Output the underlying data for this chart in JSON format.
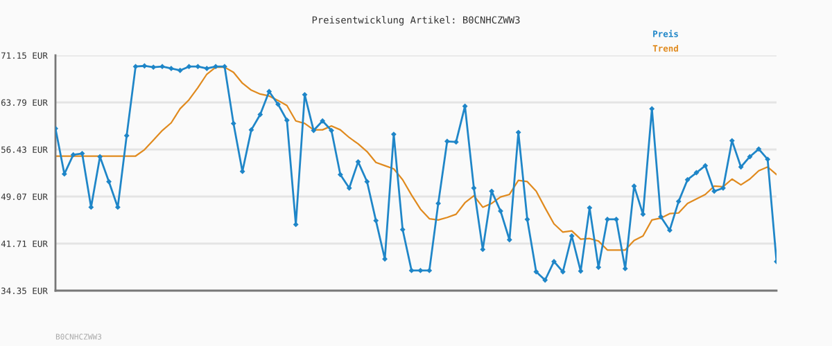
{
  "chart_data": {
    "type": "line",
    "title": "Preisentwicklung Artikel: B0CNHCZWW3",
    "categories": [
      null,
      null,
      null,
      null,
      null,
      null,
      null,
      null,
      null,
      null,
      null,
      null,
      null,
      null,
      null,
      null,
      null,
      null,
      null,
      null,
      null,
      null,
      null,
      null,
      null,
      null,
      null,
      null,
      null,
      null,
      null,
      null,
      null,
      null,
      null,
      null,
      null,
      null,
      null,
      null,
      null,
      null,
      null,
      null,
      null,
      null,
      null,
      null,
      null,
      null,
      null,
      null,
      null,
      null,
      null,
      null,
      null,
      null,
      null,
      null,
      null,
      null,
      null,
      null,
      null,
      null,
      null,
      null,
      null,
      null,
      null,
      null,
      null,
      null,
      null,
      null,
      null,
      null,
      null,
      null,
      null,
      null
    ],
    "series": [
      {
        "name": "Preis",
        "color": "#1f86c8",
        "marker": "diamond",
        "values": [
          59.7,
          52.6,
          55.6,
          55.8,
          47.4,
          55.3,
          51.4,
          47.4,
          58.6,
          69.4,
          69.5,
          69.3,
          69.4,
          69.1,
          68.8,
          69.4,
          69.4,
          69.1,
          69.4,
          69.4,
          60.5,
          53.0,
          59.5,
          61.9,
          65.5,
          63.5,
          61.0,
          44.7,
          65.0,
          59.4,
          60.9,
          59.4,
          52.5,
          50.4,
          54.5,
          51.4,
          45.3,
          39.3,
          58.8,
          43.9,
          37.5,
          37.5,
          37.5,
          48.0,
          57.7,
          57.6,
          63.2,
          50.4,
          40.8,
          49.9,
          46.8,
          42.3,
          59.1,
          45.5,
          37.3,
          36.0,
          38.9,
          37.3,
          42.9,
          37.4,
          47.3,
          38.0,
          45.5,
          45.5,
          37.8,
          50.7,
          46.3,
          62.8,
          45.9,
          43.8,
          48.3,
          51.7,
          52.8,
          53.9,
          49.9,
          50.4,
          57.8,
          53.7,
          55.3,
          56.5,
          54.9,
          38.9
        ]
      },
      {
        "name": "Trend",
        "color": "#e08a1e",
        "marker": "none",
        "values": [
          55.4,
          55.4,
          55.4,
          55.4,
          55.4,
          55.4,
          55.4,
          55.4,
          55.4,
          55.4,
          56.4,
          57.9,
          59.4,
          60.6,
          62.8,
          64.2,
          66.1,
          68.2,
          69.3,
          69.3,
          68.5,
          66.8,
          65.7,
          65.1,
          64.8,
          64.1,
          63.3,
          60.9,
          60.5,
          59.5,
          59.5,
          60.1,
          59.5,
          58.3,
          57.3,
          56.1,
          54.4,
          53.9,
          53.4,
          51.7,
          49.3,
          47.1,
          45.6,
          45.4,
          45.8,
          46.3,
          48.1,
          49.2,
          47.4,
          48.0,
          49.0,
          49.4,
          51.6,
          51.4,
          49.9,
          47.3,
          44.8,
          43.5,
          43.7,
          42.4,
          42.5,
          42.1,
          40.7,
          40.7,
          40.7,
          42.2,
          42.9,
          45.4,
          45.7,
          46.4,
          46.5,
          48.0,
          48.7,
          49.4,
          50.7,
          50.6,
          51.8,
          50.9,
          51.8,
          53.1,
          53.7,
          52.5
        ]
      }
    ],
    "ylim": [
      34.35,
      71.15
    ],
    "yticks": [
      {
        "value": 34.35,
        "label": "34.35 EUR"
      },
      {
        "value": 41.71,
        "label": "41.71 EUR"
      },
      {
        "value": 49.07,
        "label": "49.07 EUR"
      },
      {
        "value": 56.43,
        "label": "56.43 EUR"
      },
      {
        "value": 63.79,
        "label": "63.79 EUR"
      },
      {
        "value": 71.15,
        "label": "71.15 EUR"
      }
    ],
    "tick_labels": "y",
    "grid": "y",
    "legend": "top right",
    "line_style": "solid",
    "annotations": [
      "B0CNHCZWW3"
    ]
  }
}
